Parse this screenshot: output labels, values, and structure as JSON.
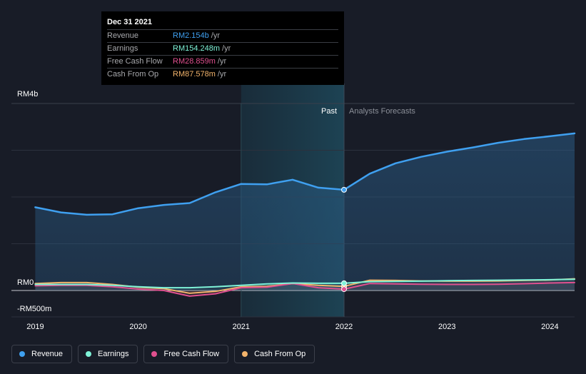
{
  "tooltip": {
    "date": "Dec 31 2021",
    "rows": [
      {
        "label": "Revenue",
        "value": "RM2.154b",
        "unit": "/yr",
        "color": "#3fa0f0"
      },
      {
        "label": "Earnings",
        "value": "RM154.248m",
        "unit": "/yr",
        "color": "#7ff3d8"
      },
      {
        "label": "Free Cash Flow",
        "value": "RM28.859m",
        "unit": "/yr",
        "color": "#e0508f"
      },
      {
        "label": "Cash From Op",
        "value": "RM87.578m",
        "unit": "/yr",
        "color": "#f2b36b"
      }
    ]
  },
  "regions": {
    "past": "Past",
    "forecast": "Analysts Forecasts"
  },
  "legend": [
    {
      "label": "Revenue",
      "color": "#3fa0f0"
    },
    {
      "label": "Earnings",
      "color": "#7ff3d8"
    },
    {
      "label": "Free Cash Flow",
      "color": "#e0508f"
    },
    {
      "label": "Cash From Op",
      "color": "#f2b36b"
    }
  ],
  "chart_data": {
    "type": "line",
    "y_tick_labels": [
      "RM4b",
      "RM0",
      "-RM500m"
    ],
    "x_tick_labels": [
      "2019",
      "2020",
      "2021",
      "2022",
      "2023",
      "2024"
    ],
    "ylim": [
      -500,
      4000
    ],
    "xlim": [
      2018.99,
      2024.24
    ],
    "divider_x": 2022.0,
    "highlight_range": [
      2021.0,
      2022.0
    ],
    "series": [
      {
        "name": "Revenue",
        "color": "#3fa0f0",
        "fill": true,
        "points": [
          [
            2019.0,
            1780
          ],
          [
            2019.25,
            1670
          ],
          [
            2019.5,
            1620
          ],
          [
            2019.75,
            1630
          ],
          [
            2020.0,
            1760
          ],
          [
            2020.25,
            1830
          ],
          [
            2020.5,
            1870
          ],
          [
            2020.75,
            2100
          ],
          [
            2021.0,
            2280
          ],
          [
            2021.25,
            2270
          ],
          [
            2021.5,
            2370
          ],
          [
            2021.75,
            2200
          ],
          [
            2022.0,
            2154
          ],
          [
            2022.25,
            2500
          ],
          [
            2022.5,
            2720
          ],
          [
            2022.75,
            2860
          ],
          [
            2023.0,
            2970
          ],
          [
            2023.25,
            3060
          ],
          [
            2023.5,
            3160
          ],
          [
            2023.75,
            3240
          ],
          [
            2024.0,
            3300
          ],
          [
            2024.24,
            3360
          ]
        ]
      },
      {
        "name": "Earnings",
        "color": "#7ff3d8",
        "fill": false,
        "points": [
          [
            2019.0,
            130
          ],
          [
            2019.25,
            130
          ],
          [
            2019.5,
            130
          ],
          [
            2019.75,
            110
          ],
          [
            2020.0,
            80
          ],
          [
            2020.25,
            60
          ],
          [
            2020.5,
            60
          ],
          [
            2020.75,
            80
          ],
          [
            2021.0,
            110
          ],
          [
            2021.25,
            140
          ],
          [
            2021.5,
            160
          ],
          [
            2021.75,
            154
          ],
          [
            2022.0,
            154
          ],
          [
            2022.25,
            190
          ],
          [
            2022.5,
            195
          ],
          [
            2022.75,
            200
          ],
          [
            2023.0,
            210
          ],
          [
            2023.25,
            215
          ],
          [
            2023.5,
            220
          ],
          [
            2023.75,
            225
          ],
          [
            2024.0,
            230
          ],
          [
            2024.24,
            240
          ]
        ]
      },
      {
        "name": "Free Cash Flow",
        "color": "#e0508f",
        "fill": false,
        "points": [
          [
            2019.0,
            100
          ],
          [
            2019.25,
            110
          ],
          [
            2019.5,
            110
          ],
          [
            2019.75,
            80
          ],
          [
            2020.0,
            30
          ],
          [
            2020.25,
            0
          ],
          [
            2020.5,
            -120
          ],
          [
            2020.75,
            -70
          ],
          [
            2021.0,
            60
          ],
          [
            2021.25,
            70
          ],
          [
            2021.5,
            150
          ],
          [
            2021.75,
            60
          ],
          [
            2022.0,
            29
          ],
          [
            2022.25,
            150
          ],
          [
            2022.5,
            140
          ],
          [
            2022.75,
            135
          ],
          [
            2023.0,
            130
          ],
          [
            2023.25,
            130
          ],
          [
            2023.5,
            135
          ],
          [
            2023.75,
            145
          ],
          [
            2024.0,
            160
          ],
          [
            2024.24,
            170
          ]
        ]
      },
      {
        "name": "Cash From Op",
        "color": "#f2b36b",
        "fill": false,
        "points": [
          [
            2019.0,
            150
          ],
          [
            2019.25,
            170
          ],
          [
            2019.5,
            170
          ],
          [
            2019.75,
            130
          ],
          [
            2020.0,
            70
          ],
          [
            2020.25,
            40
          ],
          [
            2020.5,
            -60
          ],
          [
            2020.75,
            -20
          ],
          [
            2021.0,
            80
          ],
          [
            2021.25,
            90
          ],
          [
            2021.5,
            150
          ],
          [
            2021.75,
            110
          ],
          [
            2022.0,
            88
          ],
          [
            2022.25,
            220
          ],
          [
            2022.5,
            215
          ],
          [
            2022.75,
            205
          ],
          [
            2023.0,
            200
          ],
          [
            2023.25,
            200
          ],
          [
            2023.5,
            205
          ],
          [
            2023.75,
            215
          ],
          [
            2024.0,
            225
          ],
          [
            2024.24,
            250
          ]
        ]
      }
    ]
  }
}
